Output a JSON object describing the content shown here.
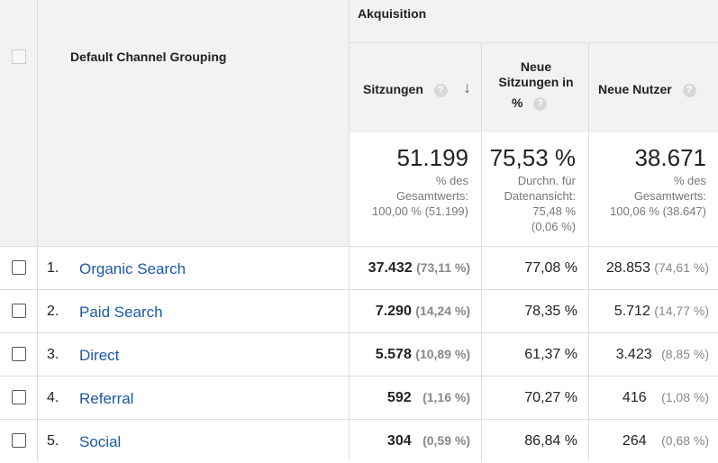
{
  "header": {
    "dimension": "Default Channel Grouping",
    "group": "Akquisition",
    "metrics": [
      {
        "label": "Sitzungen",
        "help": "?"
      },
      {
        "label_line1": "Neue",
        "label_line2": "Sitzungen in",
        "label_line3": "%",
        "help": "?"
      },
      {
        "label": "Neue Nutzer",
        "help": "?"
      }
    ],
    "sort_arrow": "↓"
  },
  "totals": {
    "sessions": {
      "value": "51.199",
      "sub1": "% des",
      "sub2": "Gesamtwerts:",
      "sub3": "100,00 % (51.199)"
    },
    "new_sessions": {
      "value": "75,53 %",
      "sub1": "Durchn. für",
      "sub2": "Datenansicht:",
      "sub3": "75,48 %",
      "sub4": "(0,06 %)"
    },
    "new_users": {
      "value": "38.671",
      "sub1": "% des",
      "sub2": "Gesamtwerts:",
      "sub3": "100,06 % (38.647)"
    }
  },
  "rows": [
    {
      "idx": "1.",
      "channel": "Organic Search",
      "sessions": "37.432",
      "sessions_pct": "(73,11 %)",
      "new_sessions": "77,08 %",
      "new_users": "28.853",
      "new_users_pct": "(74,61 %)"
    },
    {
      "idx": "2.",
      "channel": "Paid Search",
      "sessions": "7.290",
      "sessions_pct": "(14,24 %)",
      "new_sessions": "78,35 %",
      "new_users": "5.712",
      "new_users_pct": "(14,77 %)"
    },
    {
      "idx": "3.",
      "channel": "Direct",
      "sessions": "5.578",
      "sessions_pct": "(10,89 %)",
      "new_sessions": "61,37 %",
      "new_users": "3.423",
      "new_users_pct": "(8,85 %)"
    },
    {
      "idx": "4.",
      "channel": "Referral",
      "sessions": "592",
      "sessions_pct": "(1,16 %)",
      "new_sessions": "70,27 %",
      "new_users": "416",
      "new_users_pct": "(1,08 %)"
    },
    {
      "idx": "5.",
      "channel": "Social",
      "sessions": "304",
      "sessions_pct": "(0,59 %)",
      "new_sessions": "86,84 %",
      "new_users": "264",
      "new_users_pct": "(0,68 %)"
    }
  ],
  "colors": {
    "link": "#1a5aa8",
    "header_bg": "#f2f2f2",
    "grid": "#dcdcdc"
  }
}
